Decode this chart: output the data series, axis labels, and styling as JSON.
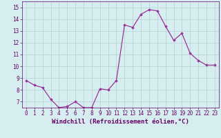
{
  "x": [
    0,
    1,
    2,
    3,
    4,
    5,
    6,
    7,
    8,
    9,
    10,
    11,
    12,
    13,
    14,
    15,
    16,
    17,
    18,
    19,
    20,
    21,
    22,
    23
  ],
  "y": [
    8.8,
    8.4,
    8.2,
    7.2,
    6.5,
    6.6,
    7.0,
    6.5,
    6.5,
    8.1,
    8.0,
    8.8,
    13.5,
    13.3,
    14.4,
    14.8,
    14.7,
    13.4,
    12.2,
    12.8,
    11.1,
    10.5,
    10.1,
    10.1
  ],
  "line_color": "#993399",
  "marker": "D",
  "marker_size": 1.8,
  "line_width": 0.9,
  "ylim": [
    6.5,
    15.5
  ],
  "yticks": [
    7,
    8,
    9,
    10,
    11,
    12,
    13,
    14,
    15
  ],
  "xlim": [
    -0.5,
    23.5
  ],
  "xlabel": "Windchill (Refroidissement éolien,°C)",
  "bg_color": "#d6eef0",
  "grid_color": "#b8cfd2",
  "tick_color": "#660066",
  "label_color": "#660066",
  "font_size_xlabel": 6.5,
  "font_size_ticks": 5.5
}
